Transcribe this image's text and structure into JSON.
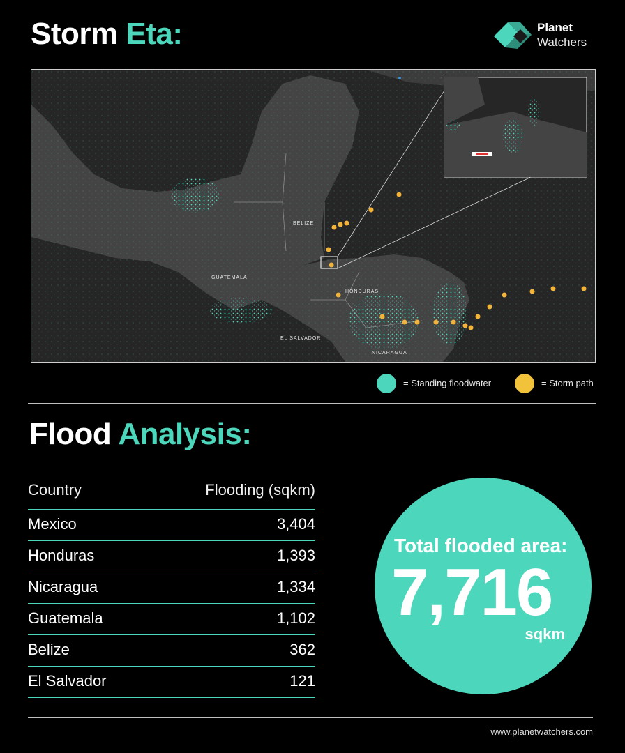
{
  "header": {
    "title_prefix": "Storm",
    "title_accent": "Eta:"
  },
  "logo": {
    "line1": "Planet",
    "line2": "Watchers",
    "icon": "planet-watchers-logo-icon"
  },
  "map": {
    "labels": {
      "guatemala": "GUATEMALA",
      "belize": "BELIZE",
      "honduras": "HONDURAS",
      "el_salvador": "EL SALVADOR",
      "nicaragua": "NICARAGUA"
    },
    "colors": {
      "land": "#444444",
      "water": "#262626",
      "flood": "#4cd6bb",
      "storm": "#f2b33a"
    }
  },
  "legend": {
    "flood_label": "= Standing floodwater",
    "storm_label": "= Storm path",
    "flood_color": "#4cd6bb",
    "storm_color": "#f2c23a"
  },
  "analysis": {
    "title_prefix": "Flood",
    "title_accent": "Analysis:",
    "columns": [
      "Country",
      "Flooding (sqkm)"
    ],
    "rows": [
      {
        "country": "Mexico",
        "value": "3,404"
      },
      {
        "country": "Honduras",
        "value": "1,393"
      },
      {
        "country": "Nicaragua",
        "value": "1,334"
      },
      {
        "country": "Guatemala",
        "value": "1,102"
      },
      {
        "country": "Belize",
        "value": "362"
      },
      {
        "country": "El Salvador",
        "value": "121"
      }
    ]
  },
  "total": {
    "label": "Total flooded area:",
    "value": "7,716",
    "unit": "sqkm"
  },
  "footer": {
    "website": "www.planetwatchers.com"
  }
}
